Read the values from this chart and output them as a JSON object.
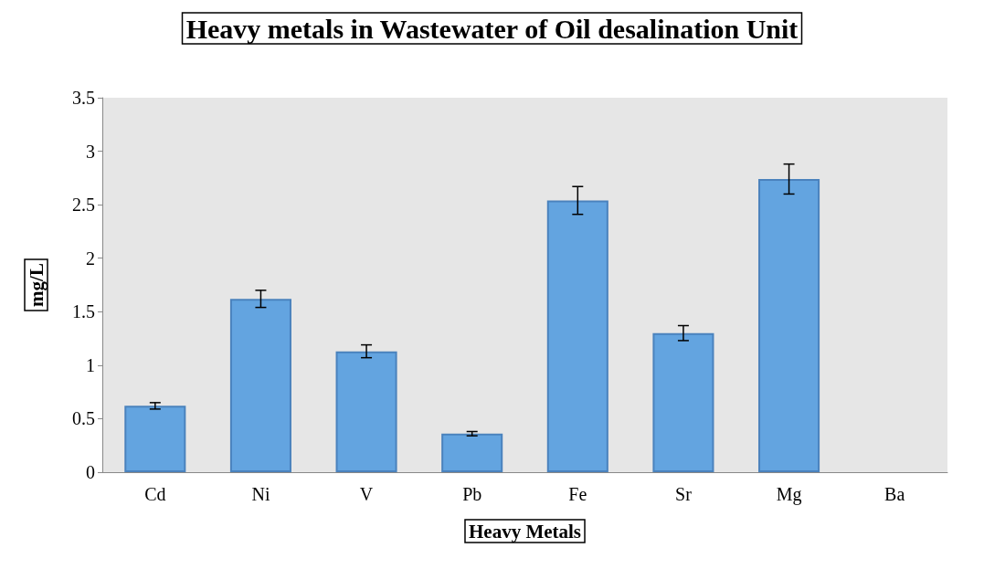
{
  "chart_data": {
    "type": "bar",
    "title": "Heavy metals in Wastewater of Oil desalination Unit",
    "xlabel": "Heavy Metals",
    "ylabel": "mg/L",
    "categories": [
      "Cd",
      "Ni",
      "V",
      "Pb",
      "Fe",
      "Sr",
      "Mg",
      "Ba"
    ],
    "values": [
      0.62,
      1.62,
      1.13,
      0.36,
      2.54,
      1.3,
      2.74,
      null
    ],
    "errors": [
      0.03,
      0.08,
      0.06,
      0.02,
      0.13,
      0.07,
      0.14,
      null
    ],
    "color": "#63a4e0",
    "ylim": [
      0,
      3.5
    ],
    "yticks": [
      0,
      0.5,
      1,
      1.5,
      2,
      2.5,
      3,
      3.5
    ],
    "grid": false
  }
}
